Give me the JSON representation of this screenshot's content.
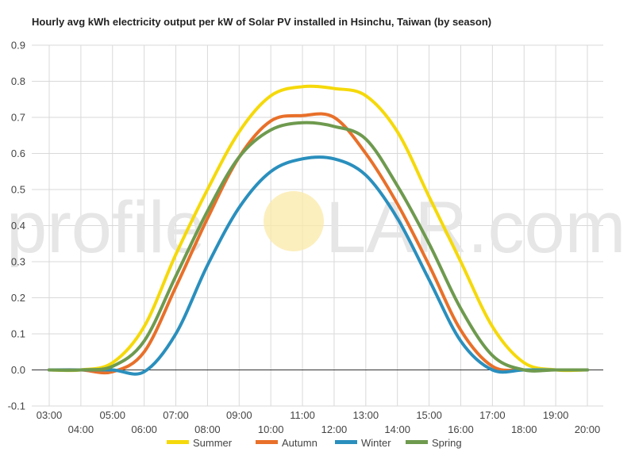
{
  "chart_data": {
    "type": "line",
    "title": "Hourly avg kWh electricity output per kW of Solar PV installed in Hsinchu, Taiwan (by season)",
    "xlabel": "",
    "ylabel": "",
    "ylim": [
      -0.1,
      0.9
    ],
    "yticks": [
      "-0.1",
      "0.0",
      "0.1",
      "0.2",
      "0.3",
      "0.4",
      "0.5",
      "0.6",
      "0.7",
      "0.8",
      "0.9"
    ],
    "categories": [
      "03:00",
      "04:00",
      "05:00",
      "06:00",
      "07:00",
      "08:00",
      "09:00",
      "10:00",
      "11:00",
      "12:00",
      "13:00",
      "14:00",
      "15:00",
      "16:00",
      "17:00",
      "18:00",
      "19:00",
      "20:00"
    ],
    "grid": true,
    "legend_position": "bottom",
    "series": [
      {
        "name": "Summer",
        "color": "#F5D90A",
        "values": [
          0.0,
          0.0,
          0.02,
          0.12,
          0.32,
          0.5,
          0.66,
          0.76,
          0.785,
          0.78,
          0.76,
          0.66,
          0.48,
          0.3,
          0.12,
          0.02,
          0.0,
          0.0
        ]
      },
      {
        "name": "Autumn",
        "color": "#E8702A",
        "values": [
          0.0,
          0.0,
          -0.005,
          0.05,
          0.23,
          0.42,
          0.59,
          0.69,
          0.705,
          0.7,
          0.6,
          0.46,
          0.29,
          0.11,
          0.01,
          0.0,
          0.0,
          0.0
        ]
      },
      {
        "name": "Winter",
        "color": "#2A8FBD",
        "values": [
          0.0,
          0.0,
          0.0,
          -0.005,
          0.1,
          0.29,
          0.45,
          0.55,
          0.585,
          0.585,
          0.54,
          0.42,
          0.25,
          0.08,
          0.0,
          0.0,
          0.0,
          0.0
        ]
      },
      {
        "name": "Spring",
        "color": "#6E9A4E",
        "values": [
          0.0,
          0.0,
          0.01,
          0.08,
          0.26,
          0.44,
          0.59,
          0.665,
          0.685,
          0.675,
          0.64,
          0.51,
          0.35,
          0.17,
          0.04,
          0.0,
          0.0,
          0.0
        ]
      }
    ]
  },
  "watermark": {
    "left": "profile",
    "right": "LAR.com"
  }
}
